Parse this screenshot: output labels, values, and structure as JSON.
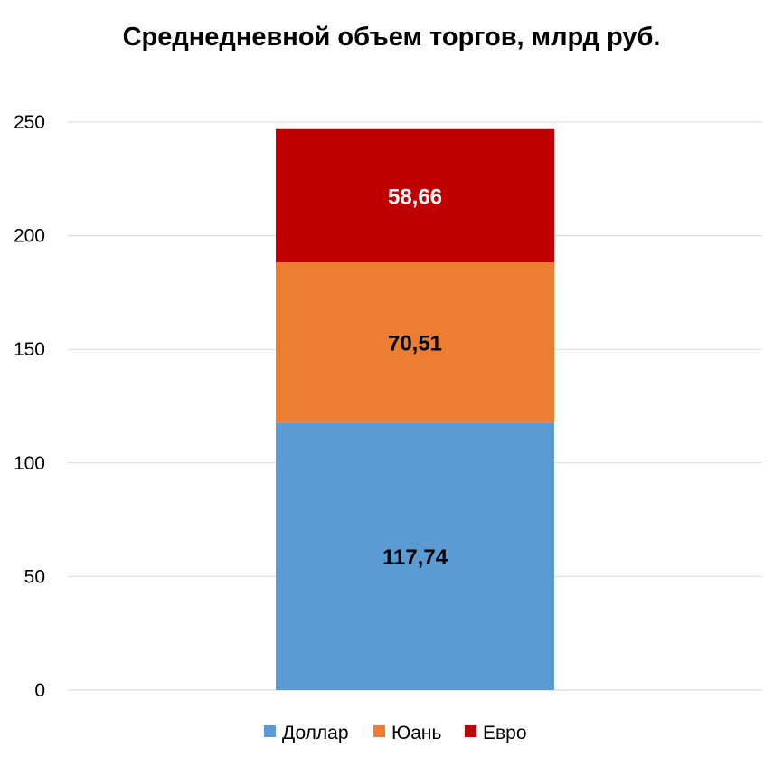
{
  "chart_data": {
    "type": "bar",
    "stacked": true,
    "title": "Среднедневной объем торгов, млрд руб.",
    "categories": [
      ""
    ],
    "series": [
      {
        "name": "Доллар",
        "values": [
          117.74
        ],
        "label": "117,74",
        "color": "#5B9BD5",
        "label_color": "#000000"
      },
      {
        "name": "Юань",
        "values": [
          70.51
        ],
        "label": "70,51",
        "color": "#ED7D31",
        "label_color": "#000000"
      },
      {
        "name": "Евро",
        "values": [
          58.66
        ],
        "label": "58,66",
        "color": "#C00000",
        "label_color": "#ffffff"
      }
    ],
    "ylim": [
      0,
      250
    ],
    "yticks": [
      "0",
      "50",
      "100",
      "150",
      "200",
      "250"
    ],
    "grid": true,
    "legend": "bottom",
    "xlabel": "",
    "ylabel": ""
  }
}
